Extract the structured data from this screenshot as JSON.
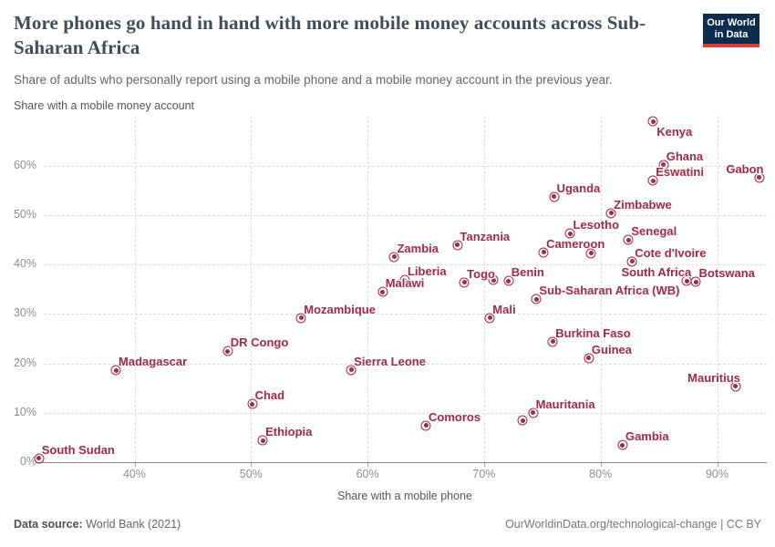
{
  "header": {
    "title": "More phones go hand in hand with more mobile money accounts across Sub-Saharan Africa",
    "subtitle": "Share of adults who personally report using a mobile phone and a mobile money account in the previous year."
  },
  "logo": {
    "line1": "Our World",
    "line2": "in Data",
    "bg_color": "#0d2d4e",
    "accent_color": "#dd3b32"
  },
  "chart_data": {
    "type": "scatter",
    "title": "More phones go hand in hand with more mobile money accounts across Sub-Saharan Africa",
    "xlabel": "Share with a mobile phone",
    "ylabel": "Share with a mobile money account",
    "xlim": [
      31,
      95
    ],
    "ylim": [
      0,
      70
    ],
    "grid": true,
    "point_color": "#a22845",
    "x_ticks": [
      {
        "value": 40,
        "label": "40%"
      },
      {
        "value": 50,
        "label": "50%"
      },
      {
        "value": 60,
        "label": "60%"
      },
      {
        "value": 70,
        "label": "70%"
      },
      {
        "value": 80,
        "label": "80%"
      },
      {
        "value": 90,
        "label": "90%"
      }
    ],
    "y_ticks": [
      {
        "value": 0,
        "label": "0%"
      },
      {
        "value": 10,
        "label": "10%"
      },
      {
        "value": 20,
        "label": "20%"
      },
      {
        "value": 30,
        "label": "30%"
      },
      {
        "value": 40,
        "label": "40%"
      },
      {
        "value": 50,
        "label": "50%"
      },
      {
        "value": 60,
        "label": "60%"
      }
    ],
    "points": [
      {
        "label": "Kenya",
        "x": 84.5,
        "y": 69.0,
        "label_side": "below-right"
      },
      {
        "label": "Ghana",
        "x": 85.4,
        "y": 60.2,
        "label_side": "above-right"
      },
      {
        "label": "Eswatini",
        "x": 84.5,
        "y": 57.0,
        "label_side": "above-right"
      },
      {
        "label": "Gabon",
        "x": 93.6,
        "y": 57.6,
        "label_side": "above-left"
      },
      {
        "label": "Uganda",
        "x": 76.0,
        "y": 53.7,
        "label_side": "above-right"
      },
      {
        "label": "Zimbabwe",
        "x": 80.9,
        "y": 50.4,
        "label_side": "above-right"
      },
      {
        "label": "Lesotho",
        "x": 77.4,
        "y": 46.3,
        "label_side": "above-right"
      },
      {
        "label": "Senegal",
        "x": 82.4,
        "y": 45.0,
        "label_side": "above-right"
      },
      {
        "label": "Tanzania",
        "x": 67.7,
        "y": 44.0,
        "label_side": "above-right"
      },
      {
        "label": "Cameroon",
        "x": 75.1,
        "y": 42.5,
        "label_side": "above-right"
      },
      {
        "label": "",
        "x": 79.2,
        "y": 42.3,
        "label_side": "above-right"
      },
      {
        "label": "Zambia",
        "x": 62.3,
        "y": 41.6,
        "label_side": "above-right"
      },
      {
        "label": "Cote d'Ivoire",
        "x": 82.7,
        "y": 40.6,
        "label_side": "above-right"
      },
      {
        "label": "South Africa",
        "x": 87.4,
        "y": 36.7,
        "label_side": "above-left"
      },
      {
        "label": "Botswana",
        "x": 88.2,
        "y": 36.5,
        "label_side": "above-right"
      },
      {
        "label": "Liberia",
        "x": 63.2,
        "y": 36.9,
        "label_side": "above-right"
      },
      {
        "label": "Malawi",
        "x": 61.3,
        "y": 34.5,
        "label_side": "above-right"
      },
      {
        "label": "Togo",
        "x": 68.3,
        "y": 36.4,
        "label_side": "above-right"
      },
      {
        "label": "",
        "x": 70.8,
        "y": 36.9,
        "label_side": "above-right"
      },
      {
        "label": "Benin",
        "x": 72.1,
        "y": 36.7,
        "label_side": "above-right"
      },
      {
        "label": "Sub-Saharan Africa (WB)",
        "x": 74.5,
        "y": 33.0,
        "label_side": "above-right"
      },
      {
        "label": "Mozambique",
        "x": 54.3,
        "y": 29.2,
        "label_side": "above-right"
      },
      {
        "label": "Mali",
        "x": 70.5,
        "y": 29.2,
        "label_side": "above-right"
      },
      {
        "label": "Burkina Faso",
        "x": 75.9,
        "y": 24.4,
        "label_side": "above-right"
      },
      {
        "label": "Guinea",
        "x": 79.0,
        "y": 21.1,
        "label_side": "above-right"
      },
      {
        "label": "DR Congo",
        "x": 48.0,
        "y": 22.5,
        "label_side": "above-right"
      },
      {
        "label": "Madagascar",
        "x": 38.4,
        "y": 18.6,
        "label_side": "above-right"
      },
      {
        "label": "Sierra Leone",
        "x": 58.6,
        "y": 18.7,
        "label_side": "above-right"
      },
      {
        "label": "Chad",
        "x": 50.1,
        "y": 11.8,
        "label_side": "above-right"
      },
      {
        "label": "Ethiopia",
        "x": 51.0,
        "y": 4.4,
        "label_side": "above-right"
      },
      {
        "label": "South Sudan",
        "x": 31.8,
        "y": 0.8,
        "label_side": "above-right"
      },
      {
        "label": "Comoros",
        "x": 65.0,
        "y": 7.4,
        "label_side": "above-right"
      },
      {
        "label": "Mauritania",
        "x": 74.2,
        "y": 10.0,
        "label_side": "above-right"
      },
      {
        "label": "",
        "x": 73.3,
        "y": 8.4,
        "label_side": "above-right"
      },
      {
        "label": "Mauritius",
        "x": 91.6,
        "y": 15.4,
        "label_side": "above-left"
      },
      {
        "label": "Gambia",
        "x": 81.9,
        "y": 3.5,
        "label_side": "above-right"
      }
    ]
  },
  "footer": {
    "source_label": "Data source:",
    "source_value": " World Bank (2021)",
    "credit": "OurWorldinData.org/technological-change | CC BY"
  }
}
